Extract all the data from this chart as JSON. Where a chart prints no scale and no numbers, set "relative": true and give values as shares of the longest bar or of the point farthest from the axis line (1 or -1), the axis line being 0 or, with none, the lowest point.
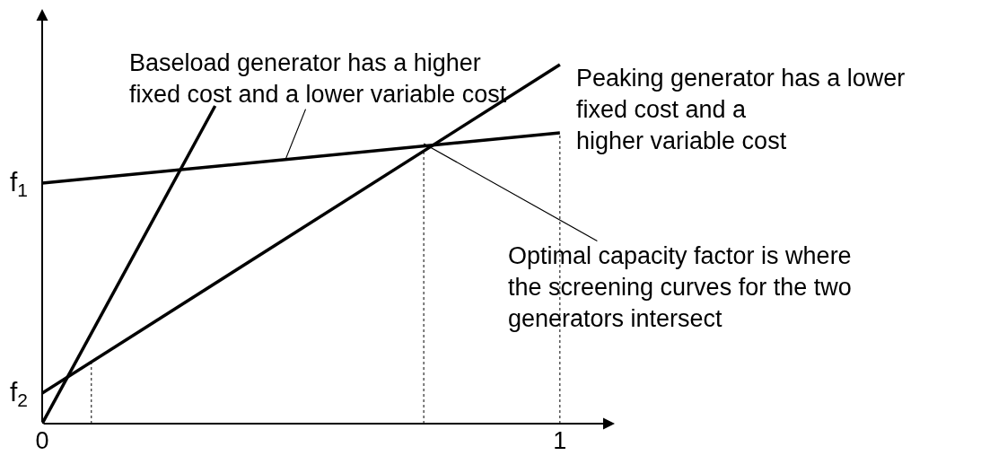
{
  "chart_data": {
    "type": "line",
    "relative": true,
    "xlim": [
      0,
      1.106
    ],
    "xticks": [
      0,
      1
    ],
    "tick_labels": "x",
    "marker": "none",
    "line_style": "solid",
    "series": [
      {
        "color": "#000000",
        "x": [
          0,
          0.334
        ],
        "values": [
          0,
          0.885
        ]
      },
      {
        "color": "#000000",
        "x": [
          0,
          1
        ],
        "values": [
          0.085,
          1
        ]
      },
      {
        "color": "#000000",
        "x": [
          0,
          1
        ],
        "values": [
          0.67,
          0.81
        ]
      }
    ],
    "ref_lines": [
      {
        "axis": "x",
        "value": 0.095,
        "color": "#000000",
        "line_style": "dotted"
      },
      {
        "axis": "x",
        "value": 0.737,
        "color": "#000000",
        "line_style": "dotted"
      },
      {
        "axis": "x",
        "value": 1,
        "color": "#000000",
        "line_style": "dotted"
      }
    ],
    "annotations": [
      {
        "text": "f$_{1}$",
        "x": 0,
        "y": 0.67
      },
      {
        "text": "f$_{2}$",
        "x": 0,
        "y": 0.085
      },
      {
        "text": "Baseload generator has a higher\nfixed cost and a lower variable cost",
        "x": 0.47,
        "y": 0.736
      },
      "Peaking generator has a lower\nfixed cost and a\nhigher variable cost",
      {
        "text": "Optimal capacity factor is where\nthe screening curves for the two\ngenerators intersect",
        "x": 0.737,
        "y": 0.78
      }
    ]
  }
}
